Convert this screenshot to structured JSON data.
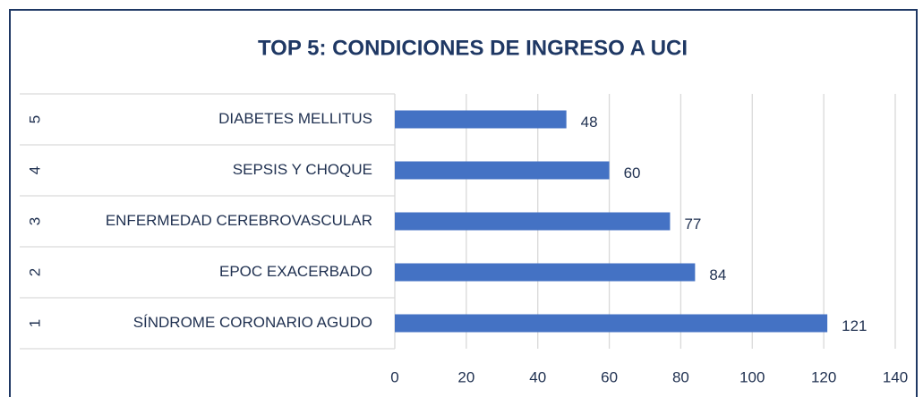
{
  "chart_data": {
    "type": "barh",
    "title": "TOP 5: CONDICIONES DE INGRESO A UCI",
    "ranks": [
      "5",
      "4",
      "3",
      "2",
      "1"
    ],
    "categories": [
      "DIABETES MELLITUS",
      "SEPSIS Y CHOQUE",
      "ENFERMEDAD CEREBROVASCULAR",
      "EPOC EXACERBADO",
      "SÍNDROME CORONARIO AGUDO"
    ],
    "values": [
      48,
      60,
      77,
      84,
      121
    ],
    "color": "#4472c4",
    "xlim": [
      0,
      140
    ],
    "xticks": [
      0,
      20,
      40,
      60,
      80,
      100,
      120,
      140
    ],
    "grid": true
  }
}
